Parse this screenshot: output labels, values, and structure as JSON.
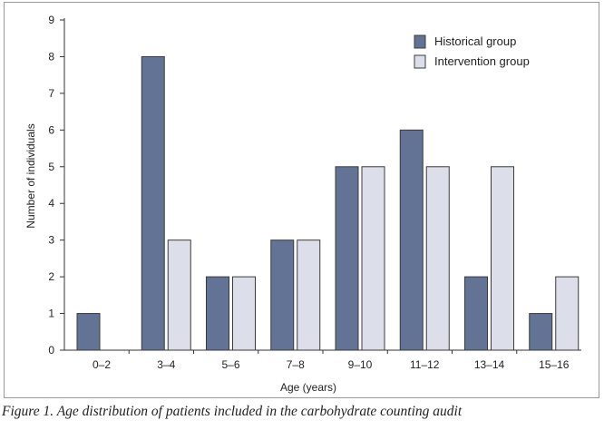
{
  "caption": "Figure 1. Age distribution of patients included in the carbohydrate counting audit",
  "chart_data": {
    "type": "bar",
    "xlabel": "Age (years)",
    "ylabel": "Number of individuals",
    "ylim": [
      0,
      9
    ],
    "yticks": [
      0,
      1,
      2,
      3,
      4,
      5,
      6,
      7,
      8,
      9
    ],
    "categories": [
      "0–2",
      "3–4",
      "5–6",
      "7–8",
      "9–10",
      "11–12",
      "13–14",
      "15–16"
    ],
    "series": [
      {
        "name": "Historical group",
        "values": [
          1,
          8,
          2,
          3,
          5,
          6,
          2,
          1
        ],
        "color": "#637395"
      },
      {
        "name": "Intervention group",
        "values": [
          0,
          3,
          2,
          3,
          5,
          5,
          5,
          2
        ],
        "color": "#dcdfe9"
      }
    ],
    "legend_position": "top-right",
    "grid": false,
    "bar_outline_color": "#3b3b3b"
  }
}
